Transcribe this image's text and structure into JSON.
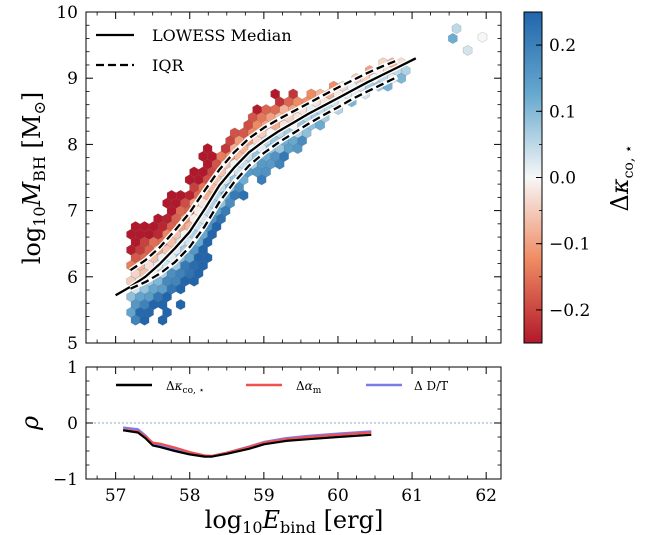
{
  "chart_data": [
    {
      "type": "hexbin-scatter",
      "xlabel": "",
      "ylabel": "log10 M_BH [M⊙]",
      "xlim": [
        56.6,
        62.2
      ],
      "ylim": [
        5,
        10
      ],
      "xticks": [
        "57",
        "58",
        "59",
        "60",
        "61",
        "62"
      ],
      "yticks": [
        "5",
        "6",
        "7",
        "8",
        "9",
        "10"
      ],
      "colorbar": {
        "label": "Δκco,⋆",
        "range": [
          -0.25,
          0.25
        ],
        "ticks": [
          "−0.2",
          "−0.1",
          "0.0",
          "0.1",
          "0.2"
        ],
        "tick_values": [
          -0.2,
          -0.1,
          0.0,
          0.1,
          0.2
        ],
        "colormap": [
          "#b2182b",
          "#ef8a62",
          "#f7f7f7",
          "#67a9cf",
          "#2166ac"
        ]
      },
      "legend": {
        "placement": "top-left",
        "entries": [
          {
            "label": "LOWESS Median",
            "style": "solid"
          },
          {
            "label": "IQR",
            "style": "dashed"
          }
        ]
      },
      "series": [
        {
          "name": "LOWESS Median",
          "x": [
            57.0,
            57.2,
            57.4,
            57.6,
            57.8,
            58.0,
            58.2,
            58.4,
            58.6,
            58.8,
            59.0,
            59.2,
            59.4,
            59.6,
            59.8,
            60.0,
            60.2,
            60.4,
            60.6,
            60.8,
            61.05
          ],
          "y": [
            5.72,
            5.85,
            6.0,
            6.2,
            6.43,
            6.68,
            7.02,
            7.38,
            7.65,
            7.88,
            8.05,
            8.2,
            8.33,
            8.46,
            8.58,
            8.7,
            8.82,
            8.94,
            9.05,
            9.16,
            9.3
          ]
        },
        {
          "name": "IQR upper",
          "x": [
            57.2,
            57.4,
            57.6,
            57.8,
            58.0,
            58.2,
            58.4,
            58.6,
            58.8,
            59.0,
            59.2,
            59.4,
            59.6,
            59.8,
            60.0,
            60.2,
            60.4,
            60.6,
            60.8
          ],
          "y": [
            6.1,
            6.25,
            6.45,
            6.7,
            6.97,
            7.3,
            7.62,
            7.88,
            8.09,
            8.25,
            8.38,
            8.5,
            8.62,
            8.74,
            8.86,
            8.97,
            9.08,
            9.18,
            9.27
          ]
        },
        {
          "name": "IQR lower",
          "x": [
            57.2,
            57.4,
            57.6,
            57.8,
            58.0,
            58.2,
            58.4,
            58.6,
            58.8,
            59.0,
            59.2,
            59.4,
            59.6,
            59.8,
            60.0,
            60.2,
            60.4,
            60.6,
            60.8
          ],
          "y": [
            5.82,
            5.92,
            6.05,
            6.22,
            6.45,
            6.76,
            7.13,
            7.43,
            7.68,
            7.87,
            8.03,
            8.17,
            8.31,
            8.44,
            8.56,
            8.69,
            8.8,
            8.91,
            9.02
          ]
        }
      ]
    },
    {
      "type": "line",
      "xlabel": "log10 E_bind [erg]",
      "ylabel": "ρ",
      "xlim": [
        56.6,
        62.2
      ],
      "ylim": [
        -1,
        1
      ],
      "xticks": [
        "57",
        "58",
        "59",
        "60",
        "61",
        "62"
      ],
      "yticks": [
        "−1",
        "0",
        "1"
      ],
      "reference_line": 0,
      "legend": {
        "placement": "top",
        "entries": [
          {
            "label": "Δκco,⋆",
            "color": "#000000"
          },
          {
            "label": "Δαm",
            "color": "#f05050"
          },
          {
            "label": "Δ D/T",
            "color": "#7b7bea"
          }
        ]
      },
      "series": [
        {
          "name": "Δκco,⋆",
          "color": "#000000",
          "x": [
            57.1,
            57.3,
            57.4,
            57.5,
            57.6,
            57.8,
            58.0,
            58.2,
            58.3,
            58.5,
            58.8,
            59.0,
            59.3,
            59.6,
            60.0,
            60.45
          ],
          "y": [
            -0.13,
            -0.17,
            -0.27,
            -0.4,
            -0.43,
            -0.5,
            -0.56,
            -0.6,
            -0.6,
            -0.55,
            -0.46,
            -0.38,
            -0.32,
            -0.29,
            -0.25,
            -0.21
          ]
        },
        {
          "name": "Δαm",
          "color": "#f05050",
          "x": [
            57.1,
            57.3,
            57.4,
            57.5,
            57.6,
            57.8,
            58.0,
            58.2,
            58.3,
            58.5,
            58.8,
            59.0,
            59.3,
            59.6,
            60.0,
            60.45
          ],
          "y": [
            -0.12,
            -0.15,
            -0.24,
            -0.35,
            -0.37,
            -0.44,
            -0.52,
            -0.58,
            -0.59,
            -0.53,
            -0.43,
            -0.35,
            -0.29,
            -0.25,
            -0.21,
            -0.17
          ]
        },
        {
          "name": "Δ D/T",
          "color": "#7b7bea",
          "x": [
            57.1,
            57.3,
            57.4,
            57.5,
            57.6,
            57.8,
            58.0,
            58.2,
            58.3,
            58.5,
            58.8,
            59.0,
            59.3,
            59.6,
            60.0,
            60.45
          ],
          "y": [
            -0.08,
            -0.11,
            -0.22,
            -0.36,
            -0.4,
            -0.47,
            -0.54,
            -0.59,
            -0.59,
            -0.53,
            -0.42,
            -0.34,
            -0.27,
            -0.23,
            -0.19,
            -0.15
          ]
        }
      ]
    }
  ]
}
